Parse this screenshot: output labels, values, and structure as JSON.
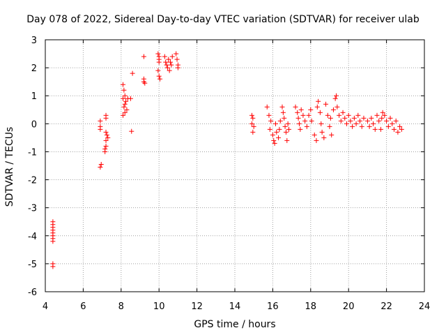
{
  "chart_data": {
    "type": "scatter",
    "title": "Day 078 of 2022, Sidereal Day-to-day VTEC variation (SDTVAR) for receiver ulab",
    "xlabel": "GPS time / hours",
    "ylabel": "SDTVAR / TECUs",
    "xlim": [
      4,
      24
    ],
    "ylim": [
      -6,
      3
    ],
    "xticks": [
      4,
      6,
      8,
      10,
      12,
      14,
      16,
      18,
      20,
      22,
      24
    ],
    "yticks": [
      3,
      2,
      1,
      0,
      -1,
      -2,
      -3,
      -4,
      -5,
      -6
    ],
    "grid": true,
    "marker": "+",
    "color": "#ff0000",
    "series": [
      {
        "name": "SDTVAR",
        "points": [
          [
            4.4,
            -3.5
          ],
          [
            4.4,
            -3.6
          ],
          [
            4.4,
            -3.7
          ],
          [
            4.4,
            -3.8
          ],
          [
            4.4,
            -3.9
          ],
          [
            4.4,
            -4.0
          ],
          [
            4.4,
            -4.1
          ],
          [
            4.4,
            -4.2
          ],
          [
            4.4,
            -5.0
          ],
          [
            4.4,
            -5.1
          ],
          [
            6.9,
            0.1
          ],
          [
            6.9,
            -0.1
          ],
          [
            6.9,
            -0.2
          ],
          [
            6.95,
            -1.45
          ],
          [
            6.9,
            -1.55
          ],
          [
            7.2,
            0.3
          ],
          [
            7.2,
            0.2
          ],
          [
            7.2,
            -0.3
          ],
          [
            7.25,
            -0.4
          ],
          [
            7.3,
            -0.5
          ],
          [
            7.2,
            -0.6
          ],
          [
            7.2,
            -0.8
          ],
          [
            7.15,
            -0.9
          ],
          [
            7.15,
            -1.0
          ],
          [
            8.1,
            1.4
          ],
          [
            8.15,
            1.2
          ],
          [
            8.2,
            1.0
          ],
          [
            8.1,
            0.9
          ],
          [
            8.25,
            0.8
          ],
          [
            8.2,
            0.7
          ],
          [
            8.15,
            0.6
          ],
          [
            8.3,
            0.5
          ],
          [
            8.2,
            0.4
          ],
          [
            8.1,
            0.3
          ],
          [
            8.35,
            0.9
          ],
          [
            8.5,
            0.9
          ],
          [
            8.6,
            1.8
          ],
          [
            8.55,
            -0.27
          ],
          [
            9.2,
            2.4
          ],
          [
            9.2,
            1.6
          ],
          [
            9.2,
            1.5
          ],
          [
            9.25,
            1.45
          ],
          [
            9.95,
            2.5
          ],
          [
            10.0,
            2.4
          ],
          [
            10.0,
            2.3
          ],
          [
            10.0,
            2.2
          ],
          [
            9.95,
            1.9
          ],
          [
            10.0,
            1.7
          ],
          [
            10.05,
            1.6
          ],
          [
            10.3,
            2.4
          ],
          [
            10.35,
            2.2
          ],
          [
            10.4,
            2.1
          ],
          [
            10.45,
            2.0
          ],
          [
            10.5,
            2.3
          ],
          [
            10.55,
            1.9
          ],
          [
            10.6,
            2.2
          ],
          [
            10.65,
            2.1
          ],
          [
            10.7,
            2.4
          ],
          [
            10.9,
            2.5
          ],
          [
            10.95,
            2.3
          ],
          [
            11.0,
            2.1
          ],
          [
            11.0,
            2.0
          ],
          [
            14.9,
            0.3
          ],
          [
            14.95,
            0.2
          ],
          [
            14.9,
            0.0
          ],
          [
            15.0,
            -0.1
          ],
          [
            14.95,
            -0.3
          ],
          [
            15.7,
            0.6
          ],
          [
            15.8,
            0.3
          ],
          [
            15.9,
            0.1
          ],
          [
            15.85,
            -0.2
          ],
          [
            16.0,
            -0.4
          ],
          [
            16.05,
            -0.6
          ],
          [
            16.1,
            -0.7
          ],
          [
            16.15,
            0.0
          ],
          [
            16.2,
            -0.3
          ],
          [
            16.3,
            -0.5
          ],
          [
            16.35,
            -0.2
          ],
          [
            16.4,
            0.1
          ],
          [
            16.5,
            0.6
          ],
          [
            16.55,
            0.4
          ],
          [
            16.6,
            0.2
          ],
          [
            16.65,
            -0.1
          ],
          [
            16.7,
            -0.3
          ],
          [
            16.75,
            -0.6
          ],
          [
            16.8,
            0.0
          ],
          [
            16.85,
            -0.2
          ],
          [
            17.2,
            0.6
          ],
          [
            17.3,
            0.4
          ],
          [
            17.35,
            0.2
          ],
          [
            17.4,
            0.0
          ],
          [
            17.45,
            -0.2
          ],
          [
            17.5,
            0.5
          ],
          [
            17.6,
            0.3
          ],
          [
            17.7,
            0.1
          ],
          [
            17.8,
            -0.1
          ],
          [
            17.9,
            0.3
          ],
          [
            18.0,
            0.5
          ],
          [
            18.05,
            0.1
          ],
          [
            18.2,
            -0.4
          ],
          [
            18.3,
            -0.6
          ],
          [
            18.35,
            0.6
          ],
          [
            18.4,
            0.8
          ],
          [
            18.5,
            0.4
          ],
          [
            18.55,
            0.0
          ],
          [
            18.6,
            -0.3
          ],
          [
            18.7,
            -0.5
          ],
          [
            18.8,
            0.7
          ],
          [
            18.9,
            0.3
          ],
          [
            19.0,
            -0.1
          ],
          [
            19.05,
            0.2
          ],
          [
            19.1,
            -0.4
          ],
          [
            19.2,
            0.5
          ],
          [
            19.3,
            0.9
          ],
          [
            19.35,
            1.0
          ],
          [
            19.4,
            0.6
          ],
          [
            19.5,
            0.3
          ],
          [
            19.6,
            0.1
          ],
          [
            19.7,
            0.4
          ],
          [
            19.8,
            0.2
          ],
          [
            19.9,
            0.0
          ],
          [
            20.0,
            0.3
          ],
          [
            20.1,
            0.1
          ],
          [
            20.2,
            -0.1
          ],
          [
            20.3,
            0.2
          ],
          [
            20.4,
            0.0
          ],
          [
            20.5,
            0.3
          ],
          [
            20.6,
            0.1
          ],
          [
            20.7,
            -0.1
          ],
          [
            20.8,
            0.2
          ],
          [
            21.0,
            0.1
          ],
          [
            21.1,
            -0.1
          ],
          [
            21.2,
            0.2
          ],
          [
            21.3,
            0.0
          ],
          [
            21.4,
            -0.2
          ],
          [
            21.5,
            0.3
          ],
          [
            21.6,
            0.1
          ],
          [
            21.7,
            -0.2
          ],
          [
            21.75,
            0.2
          ],
          [
            21.8,
            0.4
          ],
          [
            21.9,
            0.3
          ],
          [
            22.0,
            0.1
          ],
          [
            22.1,
            -0.1
          ],
          [
            22.2,
            0.2
          ],
          [
            22.3,
            0.0
          ],
          [
            22.4,
            -0.2
          ],
          [
            22.5,
            0.1
          ],
          [
            22.6,
            -0.3
          ],
          [
            22.7,
            -0.1
          ],
          [
            22.8,
            -0.2
          ]
        ]
      }
    ]
  }
}
